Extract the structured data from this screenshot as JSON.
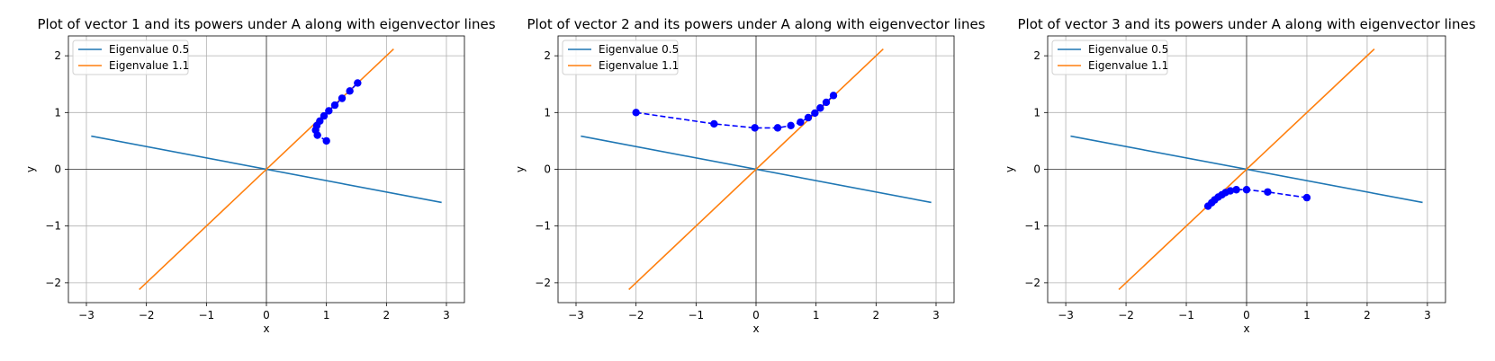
{
  "chart_data": [
    {
      "type": "line",
      "title": "Plot of vector 1 and its powers under A along with eigenvector lines",
      "xlabel": "x",
      "ylabel": "y",
      "xlim": [
        -3.3,
        3.3
      ],
      "ylim": [
        -2.35,
        2.35
      ],
      "xticks": [
        -3,
        -2,
        -1,
        0,
        1,
        2,
        3
      ],
      "yticks": [
        -2,
        -1,
        0,
        1,
        2
      ],
      "grid": true,
      "legend_position": "upper-left",
      "eigenvector_lines": [
        {
          "name": "Eigenvalue 0.5",
          "color": "#1f77b4",
          "x": [
            -2.92,
            2.92
          ],
          "y": [
            0.585,
            -0.585
          ]
        },
        {
          "name": "Eigenvalue 1.1",
          "color": "#ff7f0e",
          "x": [
            -2.12,
            2.12
          ],
          "y": [
            -2.12,
            2.12
          ]
        }
      ],
      "points": {
        "color": "#0000ff",
        "style": "dashed-with-markers",
        "x": [
          1.0,
          0.85,
          0.82,
          0.84,
          0.89,
          0.96,
          1.04,
          1.14,
          1.26,
          1.39,
          1.52
        ],
        "y": [
          0.5,
          0.6,
          0.69,
          0.77,
          0.85,
          0.94,
          1.03,
          1.13,
          1.25,
          1.38,
          1.52
        ]
      }
    },
    {
      "type": "line",
      "title": "Plot of vector 2 and its powers under A along with eigenvector lines",
      "xlabel": "x",
      "ylabel": "y",
      "xlim": [
        -3.3,
        3.3
      ],
      "ylim": [
        -2.35,
        2.35
      ],
      "xticks": [
        -3,
        -2,
        -1,
        0,
        1,
        2,
        3
      ],
      "yticks": [
        -2,
        -1,
        0,
        1,
        2
      ],
      "grid": true,
      "legend_position": "upper-left",
      "eigenvector_lines": [
        {
          "name": "Eigenvalue 0.5",
          "color": "#1f77b4",
          "x": [
            -2.92,
            2.92
          ],
          "y": [
            0.585,
            -0.585
          ]
        },
        {
          "name": "Eigenvalue 1.1",
          "color": "#ff7f0e",
          "x": [
            -2.12,
            2.12
          ],
          "y": [
            -2.12,
            2.12
          ]
        }
      ],
      "points": {
        "color": "#0000ff",
        "style": "dashed-with-markers",
        "x": [
          -2.0,
          -0.7,
          -0.02,
          0.36,
          0.58,
          0.74,
          0.87,
          0.98,
          1.07,
          1.17,
          1.29
        ],
        "y": [
          1.0,
          0.8,
          0.73,
          0.73,
          0.77,
          0.83,
          0.91,
          0.99,
          1.08,
          1.18,
          1.3
        ]
      }
    },
    {
      "type": "line",
      "title": "Plot of vector 3 and its powers under A along with eigenvector lines",
      "xlabel": "x",
      "ylabel": "y",
      "xlim": [
        -3.3,
        3.3
      ],
      "ylim": [
        -2.35,
        2.35
      ],
      "xticks": [
        -3,
        -2,
        -1,
        0,
        1,
        2,
        3
      ],
      "yticks": [
        -2,
        -1,
        0,
        1,
        2
      ],
      "grid": true,
      "legend_position": "upper-left",
      "eigenvector_lines": [
        {
          "name": "Eigenvalue 0.5",
          "color": "#1f77b4",
          "x": [
            -2.92,
            2.92
          ],
          "y": [
            0.585,
            -0.585
          ]
        },
        {
          "name": "Eigenvalue 1.1",
          "color": "#ff7f0e",
          "x": [
            -2.12,
            2.12
          ],
          "y": [
            -2.12,
            2.12
          ]
        }
      ],
      "points": {
        "color": "#0000ff",
        "style": "dashed-with-markers",
        "x": [
          1.0,
          0.35,
          0.0,
          -0.17,
          -0.27,
          -0.35,
          -0.41,
          -0.47,
          -0.53,
          -0.58,
          -0.64
        ],
        "y": [
          -0.5,
          -0.4,
          -0.36,
          -0.36,
          -0.38,
          -0.41,
          -0.45,
          -0.49,
          -0.54,
          -0.59,
          -0.65
        ]
      }
    }
  ]
}
